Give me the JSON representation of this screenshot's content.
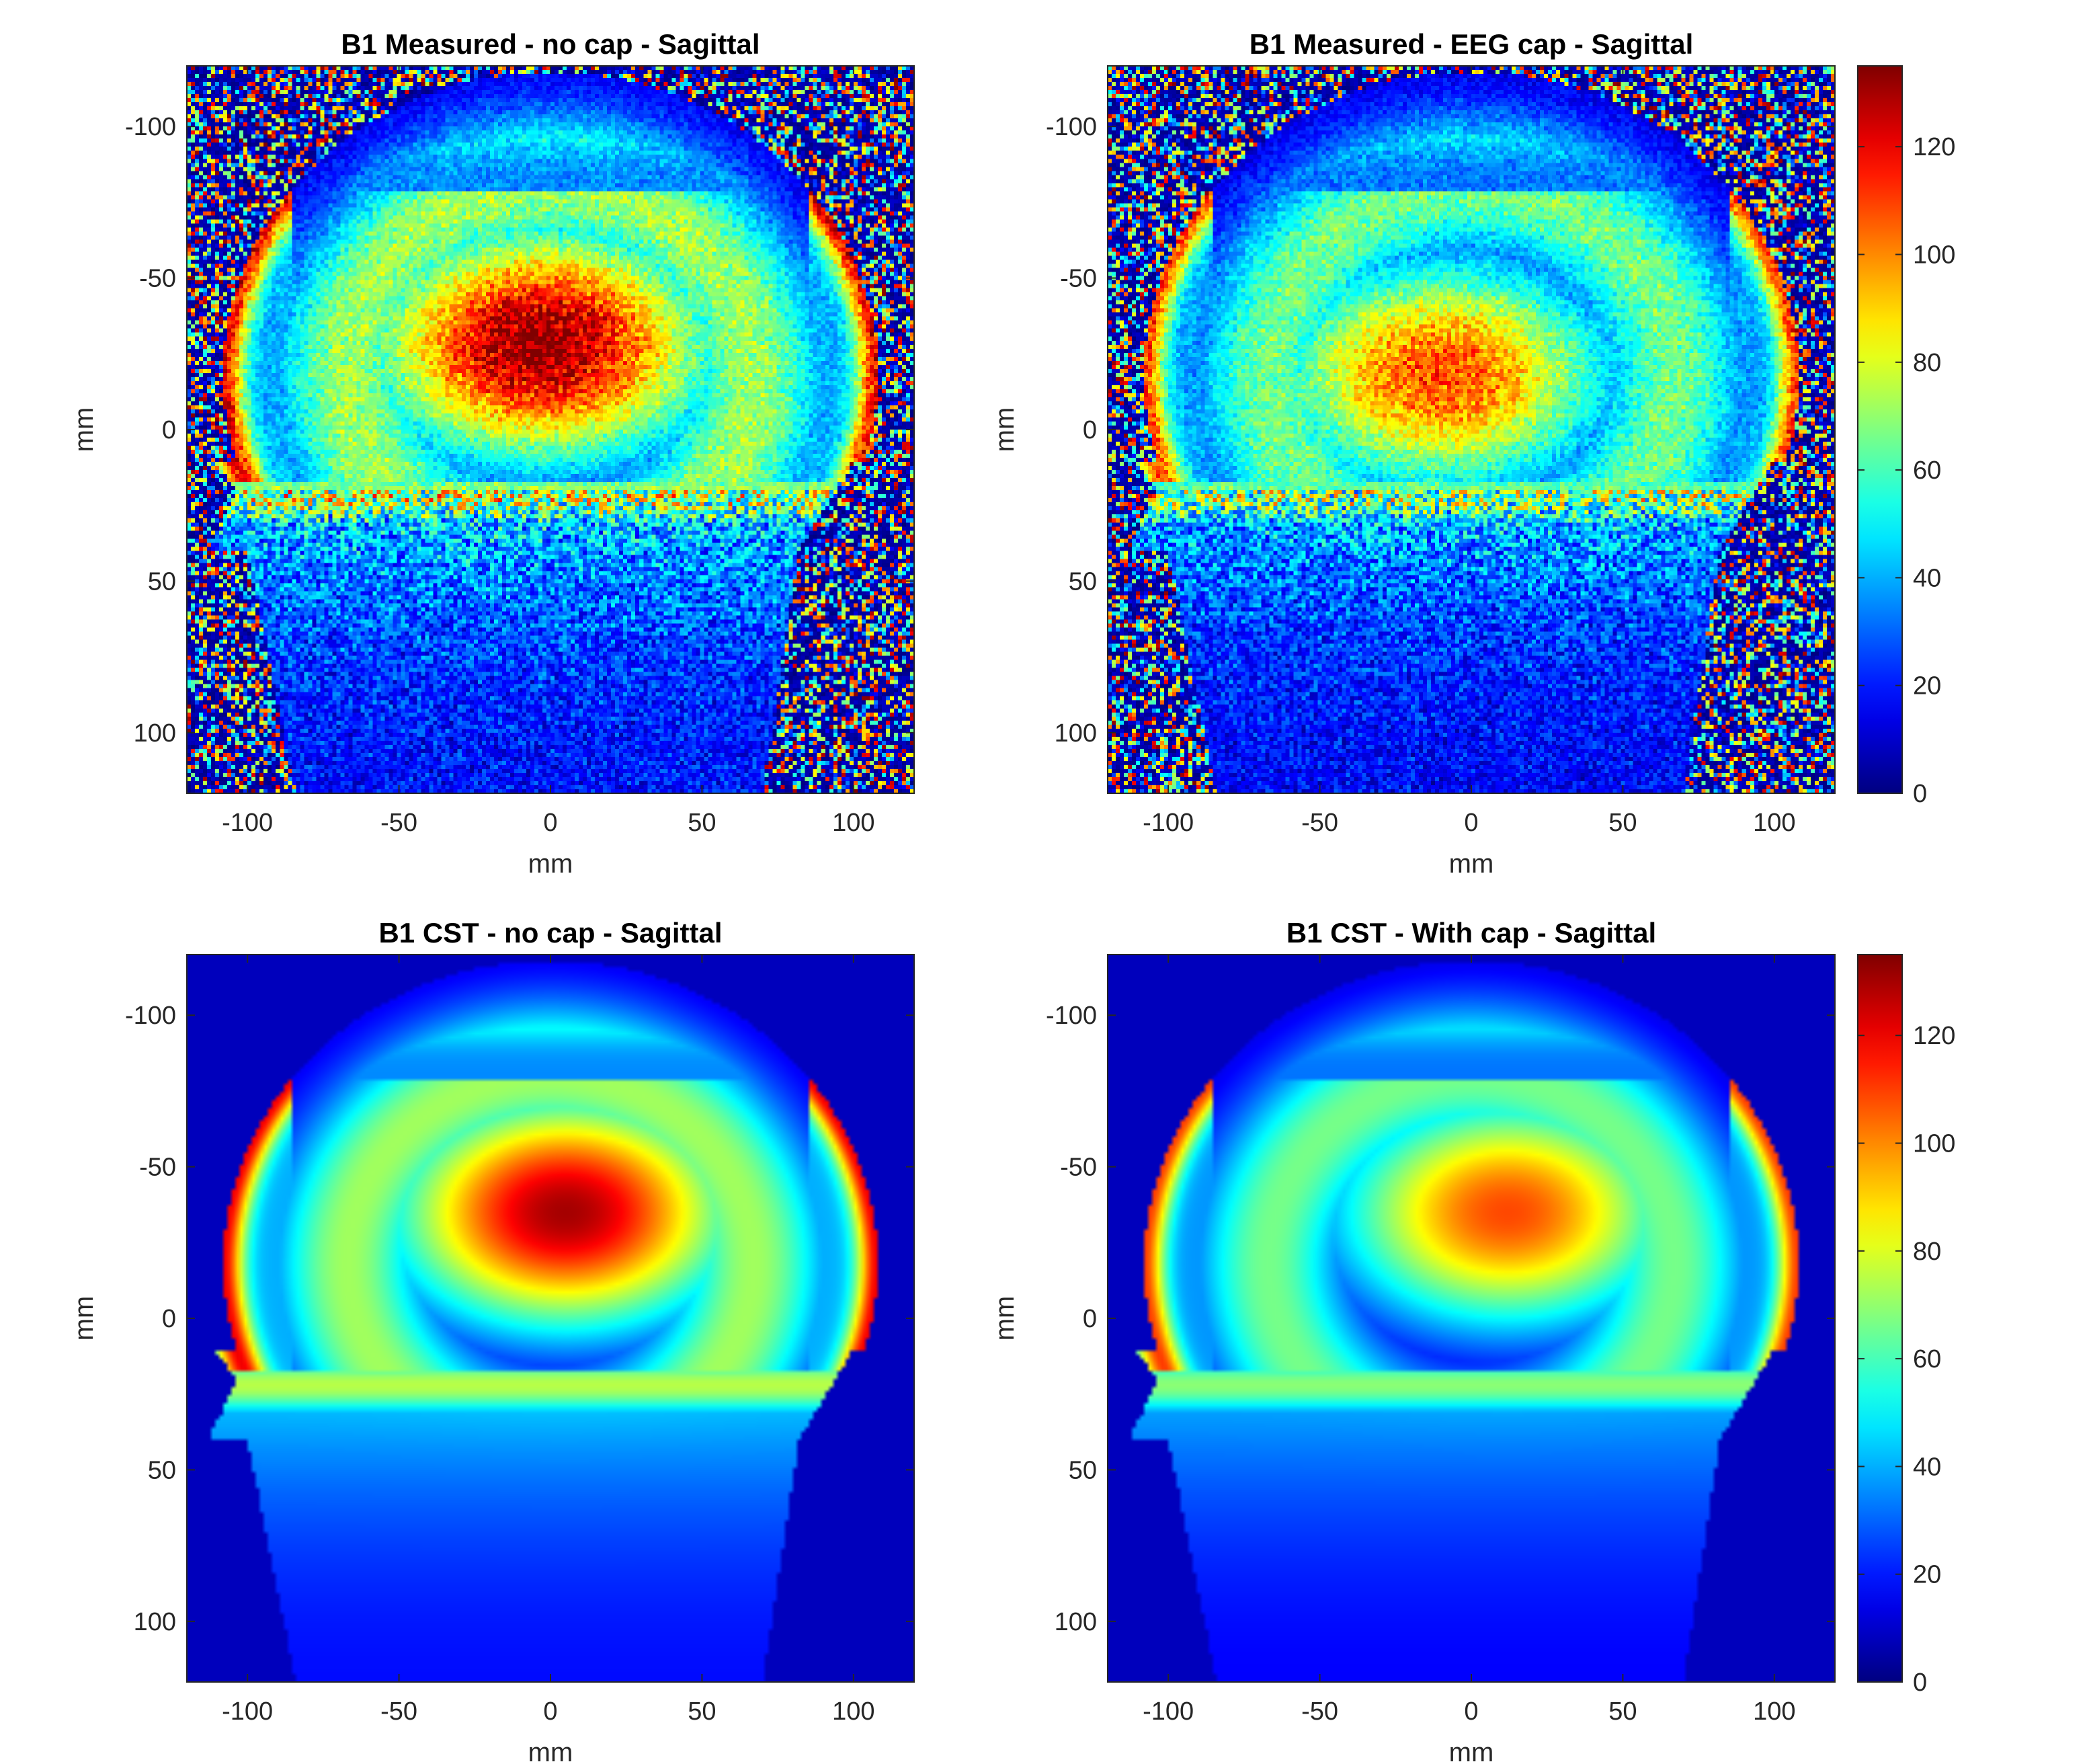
{
  "figure": {
    "colormap": "jet",
    "colorbar_ticks": [
      0,
      20,
      40,
      60,
      80,
      100,
      120
    ],
    "colorbar_range": [
      0,
      135
    ]
  },
  "chart_data": [
    {
      "type": "heatmap",
      "title": "B1 Measured - no cap - Sagittal",
      "xlabel": "mm",
      "ylabel": "mm",
      "xlim": [
        -120,
        120
      ],
      "ylim": [
        -120,
        120
      ],
      "y_reversed": true,
      "xticks": [
        -100,
        -50,
        0,
        50,
        100
      ],
      "yticks": [
        -100,
        -50,
        0,
        50,
        100
      ],
      "clim": [
        0,
        135
      ],
      "noisy": true,
      "cap": false,
      "colorbar": false,
      "peak": {
        "x": -3,
        "y": -28,
        "value": 135
      }
    },
    {
      "type": "heatmap",
      "title": "B1 Measured - EEG cap - Sagittal",
      "xlabel": "mm",
      "ylabel": "mm",
      "xlim": [
        -120,
        120
      ],
      "ylim": [
        -120,
        120
      ],
      "y_reversed": true,
      "xticks": [
        -100,
        -50,
        0,
        50,
        100
      ],
      "yticks": [
        -100,
        -50,
        0,
        50,
        100
      ],
      "clim": [
        0,
        135
      ],
      "noisy": true,
      "cap": true,
      "colorbar": true,
      "peak": {
        "x": -10,
        "y": -18,
        "value": 118
      }
    },
    {
      "type": "heatmap",
      "title": "B1 CST - no cap - Sagittal",
      "xlabel": "mm",
      "ylabel": "mm",
      "xlim": [
        -120,
        120
      ],
      "ylim": [
        -120,
        120
      ],
      "y_reversed": true,
      "xticks": [
        -100,
        -50,
        0,
        50,
        100
      ],
      "yticks": [
        -100,
        -50,
        0,
        50,
        100
      ],
      "clim": [
        0,
        135
      ],
      "noisy": false,
      "cap": false,
      "colorbar": false,
      "peak": {
        "x": 5,
        "y": -35,
        "value": 130
      }
    },
    {
      "type": "heatmap",
      "title": "B1 CST - With cap - Sagittal",
      "xlabel": "mm",
      "ylabel": "mm",
      "xlim": [
        -120,
        120
      ],
      "ylim": [
        -120,
        120
      ],
      "y_reversed": true,
      "xticks": [
        -100,
        -50,
        0,
        50,
        100
      ],
      "yticks": [
        -100,
        -50,
        0,
        50,
        100
      ],
      "clim": [
        0,
        135
      ],
      "noisy": false,
      "cap": true,
      "colorbar": true,
      "peak": {
        "x": 12,
        "y": -35,
        "value": 118
      }
    }
  ]
}
